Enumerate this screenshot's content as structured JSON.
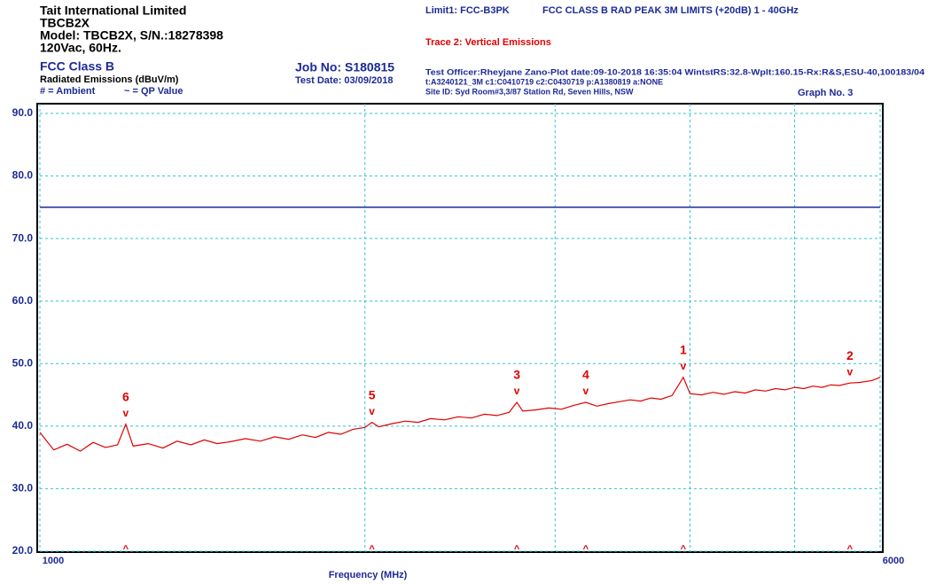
{
  "chart_data": {
    "type": "line",
    "header": {
      "company": "Tait International Limited",
      "product": "TBCB2X",
      "model": "Model: TBCB2X, S/N.:18278398",
      "supply": "120Vac, 60Hz.",
      "standard": "FCC Class B",
      "measurement": "Radiated Emissions (dBuV/m)",
      "ambient_key": "# = Ambient",
      "qp_key": "~ = QP Value",
      "job": "Job No: S180815",
      "test_date": "Test Date: 03/09/2018",
      "limit_description": "FCC CLASS B RAD PEAK 3M LIMITS (+20dB) 1 - 40GHz",
      "info_line1": "Test Officer:Rheyjane Zano-Plot date:09-10-2018 16:35:04   WintstRS:32.8-Wplt:160.15-Rx:R&S,ESU-40,100183/04",
      "info_line2": "t:A3240121_3M c1:C0410719  c2:C0430719 p:A1380819 a:NONE",
      "site": "Site ID:  Syd Room#3,3/87  Station Rd, Seven Hills, NSW",
      "graph_no": "Graph No.  3"
    },
    "xlabel": "Frequency (MHz)",
    "xscale": "log",
    "xlim": [
      1000,
      6000
    ],
    "xticks": [
      1000,
      {
        "value": 2000,
        "label": null
      },
      {
        "value": 3000,
        "label": null
      },
      {
        "value": 4000,
        "label": null
      },
      {
        "value": 5000,
        "label": null
      },
      6000
    ],
    "ylim": [
      20,
      90
    ],
    "yticks": [
      {
        "value": 20,
        "label": "20.0"
      },
      {
        "value": 30,
        "label": "30.0"
      },
      {
        "value": 40,
        "label": "40.0"
      },
      {
        "value": 50,
        "label": "50.0"
      },
      {
        "value": 60,
        "label": "60.0"
      },
      {
        "value": 70,
        "label": "70.0"
      },
      {
        "value": 80,
        "label": "80.0"
      },
      {
        "value": 90,
        "label": "90.0"
      }
    ],
    "grid": true,
    "series": [
      {
        "name": "Limit1: FCC-B3PK",
        "color": "#1c2a96",
        "x": [
          1000,
          6000
        ],
        "values": [
          75,
          75
        ]
      },
      {
        "name": "Trace 2: Vertical Emissions",
        "color": "#e00000",
        "x": [
          1000,
          1030,
          1060,
          1090,
          1120,
          1150,
          1180,
          1201,
          1220,
          1260,
          1300,
          1340,
          1380,
          1420,
          1460,
          1500,
          1550,
          1600,
          1650,
          1700,
          1750,
          1800,
          1850,
          1900,
          1950,
          2000,
          2030,
          2060,
          2120,
          2180,
          2240,
          2300,
          2370,
          2440,
          2510,
          2580,
          2650,
          2720,
          2765,
          2800,
          2880,
          2960,
          3040,
          3120,
          3203,
          3280,
          3360,
          3440,
          3520,
          3600,
          3680,
          3760,
          3850,
          3943,
          4000,
          4100,
          4200,
          4300,
          4400,
          4500,
          4600,
          4700,
          4800,
          4900,
          5000,
          5100,
          5200,
          5300,
          5400,
          5500,
          5625,
          5750,
          5900,
          6000
        ],
        "values": [
          39,
          36.2,
          37.1,
          36.0,
          37.4,
          36.6,
          37.0,
          40.3,
          36.8,
          37.2,
          36.5,
          37.6,
          37.0,
          37.8,
          37.2,
          37.5,
          38.0,
          37.6,
          38.3,
          37.9,
          38.6,
          38.2,
          39.0,
          38.7,
          39.5,
          39.8,
          40.6,
          39.9,
          40.4,
          40.8,
          40.6,
          41.2,
          41.0,
          41.5,
          41.3,
          41.9,
          41.7,
          42.2,
          43.8,
          42.4,
          42.6,
          42.9,
          42.7,
          43.3,
          43.8,
          43.2,
          43.6,
          43.9,
          44.2,
          44.0,
          44.5,
          44.3,
          44.9,
          47.8,
          45.2,
          45.0,
          45.4,
          45.1,
          45.5,
          45.3,
          45.8,
          45.6,
          46.0,
          45.8,
          46.2,
          46.0,
          46.4,
          46.2,
          46.6,
          46.5,
          46.9,
          47.0,
          47.3,
          47.8
        ]
      }
    ],
    "marker_top_symbol": "v",
    "marker_bottom_symbol": "^",
    "markers": [
      {
        "label": "1",
        "x": 3943,
        "value": 47.8
      },
      {
        "label": "2",
        "x": 5625,
        "value": 46.9
      },
      {
        "label": "3",
        "x": 2765,
        "value": 43.8
      },
      {
        "label": "4",
        "x": 3203,
        "value": 43.8
      },
      {
        "label": "5",
        "x": 2030,
        "value": 40.6
      },
      {
        "label": "6",
        "x": 1201,
        "value": 40.3
      }
    ]
  }
}
